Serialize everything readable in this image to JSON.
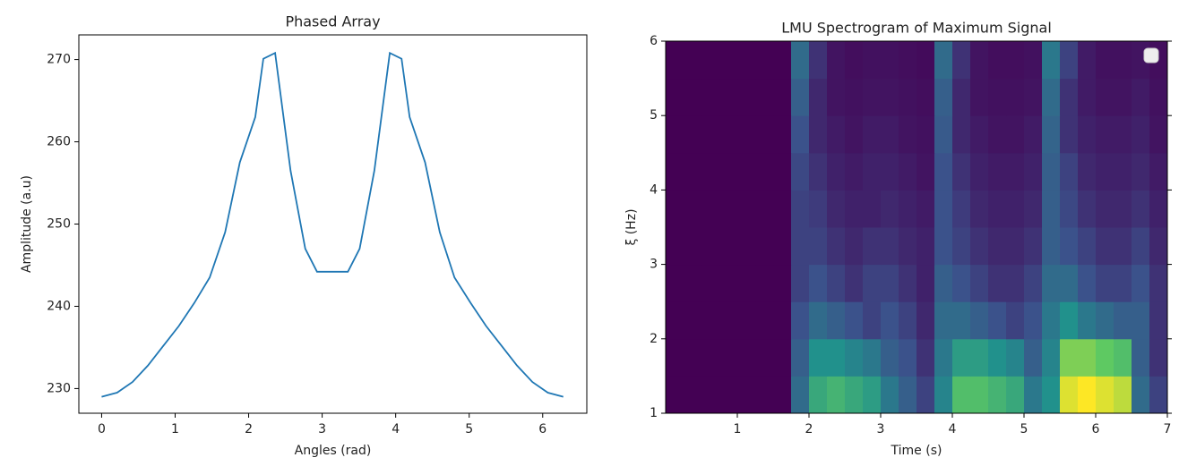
{
  "chart_data": [
    {
      "type": "line",
      "title": "Phased Array",
      "xlabel": "Angles (rad)",
      "ylabel": "Amplitude (a.u)",
      "series": [
        {
          "color": "#1f77b4",
          "x": [
            0,
            0.21,
            0.42,
            0.63,
            0.84,
            1.05,
            1.26,
            1.47,
            1.68,
            1.88,
            2.09,
            2.2,
            2.36,
            2.57,
            2.77,
            2.93,
            3.35,
            3.51,
            3.71,
            3.92,
            4.08,
            4.19,
            4.4,
            4.6,
            4.8,
            5.02,
            5.23,
            5.44,
            5.65,
            5.86,
            6.07,
            6.28
          ],
          "values": [
            229,
            229.5,
            230.8,
            232.8,
            235.2,
            237.6,
            240.4,
            243.5,
            249,
            257.5,
            263,
            270.1,
            270.8,
            256.5,
            247,
            244.2,
            244.2,
            247,
            256.5,
            270.8,
            270.1,
            263,
            257.5,
            249,
            243.5,
            240.4,
            237.6,
            235.2,
            232.8,
            230.8,
            229.5,
            229
          ]
        }
      ],
      "xlim": [
        -0.31,
        6.6
      ],
      "ylim": [
        227,
        273
      ],
      "xticks": [
        0,
        1,
        2,
        3,
        4,
        5,
        6
      ],
      "yticks": [
        230,
        240,
        250,
        260,
        270
      ]
    },
    {
      "type": "heatmap",
      "title": "LMU Spectrogram of Maximum Signal",
      "xlabel": "Time (s)",
      "ylabel": "ξ (Hz)",
      "colormap": "viridis",
      "x_bins": [
        0,
        0.25,
        0.5,
        0.75,
        1,
        1.25,
        1.5,
        1.75,
        2,
        2.25,
        2.5,
        2.75,
        3,
        3.25,
        3.5,
        3.75,
        4,
        4.25,
        4.5,
        4.75,
        5,
        5.25,
        5.5,
        5.75,
        6,
        6.25,
        6.5,
        6.75,
        7
      ],
      "y_bins": [
        1,
        1.5,
        2,
        2.5,
        3,
        3.5,
        4,
        4.5,
        5,
        5.5,
        6
      ],
      "z": [
        [
          0,
          0,
          0,
          0,
          0,
          0,
          0,
          0.35,
          0.6,
          0.65,
          0.6,
          0.55,
          0.4,
          0.3,
          0.2,
          0.45,
          0.7,
          0.7,
          0.65,
          0.6,
          0.4,
          0.5,
          0.95,
          1,
          0.95,
          0.9,
          0.35,
          0.2
        ],
        [
          0,
          0,
          0,
          0,
          0,
          0,
          0,
          0.3,
          0.5,
          0.5,
          0.45,
          0.4,
          0.3,
          0.25,
          0.15,
          0.4,
          0.55,
          0.55,
          0.5,
          0.45,
          0.3,
          0.45,
          0.8,
          0.8,
          0.75,
          0.7,
          0.3,
          0.15
        ],
        [
          0,
          0,
          0,
          0,
          0,
          0,
          0,
          0.25,
          0.35,
          0.3,
          0.25,
          0.2,
          0.25,
          0.2,
          0.12,
          0.35,
          0.35,
          0.3,
          0.25,
          0.2,
          0.25,
          0.4,
          0.5,
          0.4,
          0.35,
          0.3,
          0.3,
          0.15
        ],
        [
          0,
          0,
          0,
          0,
          0,
          0,
          0,
          0.2,
          0.25,
          0.2,
          0.15,
          0.2,
          0.2,
          0.15,
          0.1,
          0.3,
          0.25,
          0.2,
          0.15,
          0.15,
          0.2,
          0.35,
          0.35,
          0.25,
          0.2,
          0.2,
          0.25,
          0.15
        ],
        [
          0,
          0,
          0,
          0,
          0,
          0,
          0,
          0.2,
          0.2,
          0.15,
          0.12,
          0.15,
          0.15,
          0.12,
          0.1,
          0.25,
          0.2,
          0.15,
          0.12,
          0.12,
          0.15,
          0.3,
          0.25,
          0.2,
          0.15,
          0.15,
          0.2,
          0.12
        ],
        [
          0,
          0,
          0,
          0,
          0,
          0,
          0,
          0.2,
          0.18,
          0.12,
          0.1,
          0.1,
          0.12,
          0.1,
          0.08,
          0.25,
          0.18,
          0.12,
          0.1,
          0.1,
          0.12,
          0.3,
          0.22,
          0.15,
          0.12,
          0.12,
          0.15,
          0.1
        ],
        [
          0,
          0,
          0,
          0,
          0,
          0,
          0,
          0.22,
          0.15,
          0.1,
          0.08,
          0.1,
          0.1,
          0.08,
          0.06,
          0.25,
          0.15,
          0.1,
          0.08,
          0.08,
          0.1,
          0.3,
          0.2,
          0.12,
          0.1,
          0.1,
          0.12,
          0.08
        ],
        [
          0,
          0,
          0,
          0,
          0,
          0,
          0,
          0.25,
          0.12,
          0.08,
          0.06,
          0.08,
          0.08,
          0.06,
          0.05,
          0.28,
          0.12,
          0.08,
          0.06,
          0.06,
          0.08,
          0.32,
          0.15,
          0.1,
          0.08,
          0.08,
          0.1,
          0.06
        ],
        [
          0,
          0,
          0,
          0,
          0,
          0,
          0,
          0.3,
          0.12,
          0.06,
          0.05,
          0.06,
          0.06,
          0.05,
          0.04,
          0.3,
          0.12,
          0.06,
          0.05,
          0.05,
          0.06,
          0.35,
          0.15,
          0.08,
          0.06,
          0.06,
          0.08,
          0.05
        ],
        [
          0,
          0,
          0,
          0,
          0,
          0,
          0,
          0.35,
          0.15,
          0.06,
          0.04,
          0.05,
          0.05,
          0.04,
          0.03,
          0.35,
          0.15,
          0.06,
          0.04,
          0.04,
          0.05,
          0.4,
          0.2,
          0.08,
          0.05,
          0.05,
          0.06,
          0.04
        ]
      ],
      "xlim": [
        0,
        7
      ],
      "ylim": [
        1,
        6
      ],
      "xticks": [
        1,
        2,
        3,
        4,
        5,
        6,
        7
      ],
      "yticks": [
        1,
        2,
        3,
        4,
        5,
        6
      ]
    }
  ]
}
